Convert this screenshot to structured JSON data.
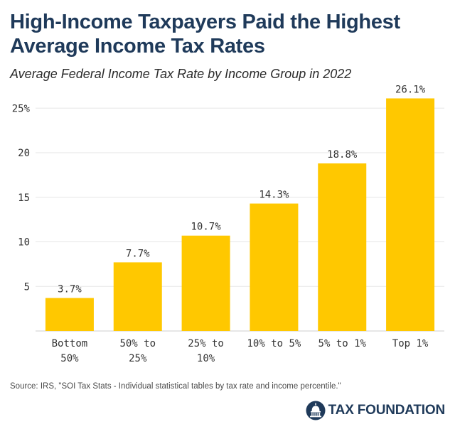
{
  "header": {
    "title": "High-Income Taxpayers Paid the Highest Average Income Tax Rates",
    "subtitle": "Average Federal Income Tax Rate by Income Group in 2022"
  },
  "chart_data": {
    "type": "bar",
    "categories": [
      [
        "Bottom",
        "50%"
      ],
      [
        "50% to",
        "25%"
      ],
      [
        "25% to",
        "10%"
      ],
      [
        "10% to 5%"
      ],
      [
        "5% to 1%"
      ],
      [
        "Top 1%"
      ]
    ],
    "values": [
      3.7,
      7.7,
      10.7,
      14.3,
      18.8,
      26.1
    ],
    "data_labels": [
      "3.7%",
      "7.7%",
      "10.7%",
      "14.3%",
      "18.8%",
      "26.1%"
    ],
    "y_ticks": [
      5,
      10,
      15,
      20,
      25
    ],
    "y_tick_labels": [
      "5",
      "10",
      "15",
      "20",
      "25%"
    ],
    "ylim": [
      0,
      27
    ],
    "grid": true,
    "bar_color": "#ffc800",
    "xlabel": "",
    "ylabel": ""
  },
  "footer": {
    "source": "Source: IRS, \"SOI Tax Stats - Individual statistical tables by tax rate and income percentile.\"",
    "brand": "TAX FOUNDATION"
  },
  "colors": {
    "title": "#1f3a5a",
    "bar": "#ffc800",
    "grid": "#e6e6e6",
    "axis_text": "#333333"
  },
  "icons": {
    "brand": "capitol-dome-icon"
  }
}
